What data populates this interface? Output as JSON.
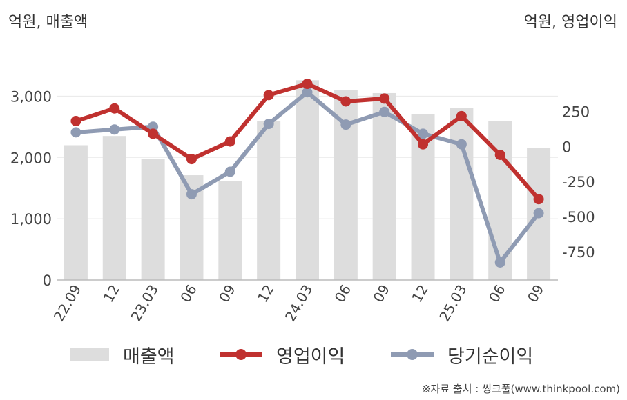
{
  "units": {
    "left": "억원, 매출액",
    "right": "억원, 영업이익"
  },
  "colors": {
    "bar": "#dddddd",
    "operating": "#c0312f",
    "net": "#8f9bb3",
    "grid": "#e8e8e8",
    "axis": "#bbbbbb"
  },
  "chart_data": {
    "type": "bar",
    "categories": [
      "22.09",
      "12",
      "23.03",
      "06",
      "09",
      "12",
      "24.03",
      "06",
      "09",
      "12",
      "25.03",
      "06",
      "09"
    ],
    "series": [
      {
        "name": "매출액",
        "type": "bar",
        "axis": "left",
        "values": [
          2200,
          2350,
          1980,
          1710,
          1610,
          2590,
          3260,
          3100,
          3050,
          2710,
          2810,
          2590,
          2160
        ]
      },
      {
        "name": "영업이익",
        "type": "line",
        "axis": "right",
        "values": [
          180,
          270,
          90,
          -90,
          35,
          365,
          445,
          320,
          340,
          15,
          215,
          -60,
          -375
        ]
      },
      {
        "name": "당기순이익",
        "type": "line",
        "axis": "right",
        "values": [
          100,
          120,
          140,
          -340,
          -180,
          160,
          385,
          155,
          245,
          90,
          15,
          -825,
          -475
        ]
      }
    ],
    "y_left": {
      "range": [
        0,
        3500
      ],
      "ticks": [
        0,
        1000,
        2000,
        3000
      ],
      "tick_labels": [
        "0",
        "1,000",
        "2,000",
        "3,000"
      ]
    },
    "y_right": {
      "range": [
        -950,
        575
      ],
      "ticks": [
        -750,
        -500,
        -250,
        0,
        250
      ],
      "tick_labels": [
        "-750",
        "-500",
        "-250",
        "0",
        "250"
      ]
    },
    "grid": true,
    "legend": "bottom"
  },
  "legend": {
    "bar_label": "매출액",
    "operating_label": "영업이익",
    "net_label": "당기순이익"
  },
  "source": "※자료 출처 : 씽크풀(www.thinkpool.com)"
}
